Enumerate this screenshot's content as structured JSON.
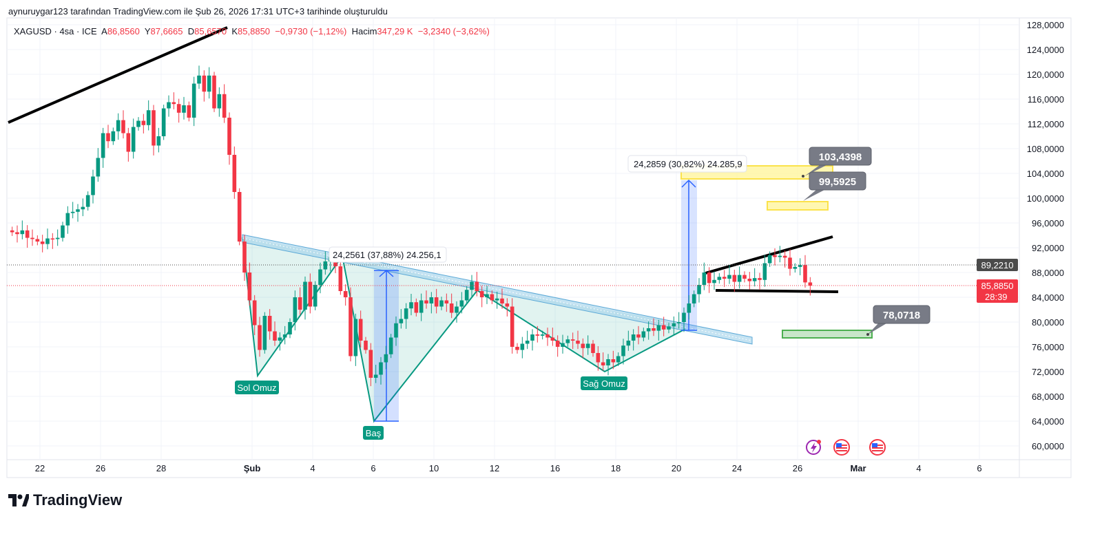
{
  "credit": "aynuruygar123 tarafından TradingView.com ile Şub 26, 2026 17:31 UTC+3 tarihinde oluşturuldu",
  "legend": {
    "symbol": "XAGUSD · 4sa · ICE",
    "open_label": "A",
    "open": "86,8560",
    "high_label": "Y",
    "high": "87,6665",
    "low_label": "D",
    "low": "85,6570",
    "close_label": "K",
    "close": "85,8850",
    "change": "−0,9730 (−1,12%)",
    "volume_label": "Hacim",
    "volume": "347,29 K",
    "volume_change": "−3,2340 (−3,62%)"
  },
  "logo": "TradingView",
  "colors": {
    "up": "#089981",
    "down": "#f23645",
    "accent": "#2962ff"
  },
  "chart_data": {
    "type": "candlestick",
    "symbol": "XAGUSD",
    "interval": "4h",
    "ylim": [
      58,
      130
    ],
    "y_ticks": [
      "128,0000",
      "124,0000",
      "120,0000",
      "116,0000",
      "112,0000",
      "108,0000",
      "104,0000",
      "100,0000",
      "96,0000",
      "92,0000",
      "88,0000",
      "84,0000",
      "80,0000",
      "76,0000",
      "72,0000",
      "68,0000",
      "64,0000",
      "60,0000"
    ],
    "y_tick_values": [
      128,
      124,
      120,
      116,
      112,
      108,
      104,
      100,
      96,
      92,
      88,
      84,
      80,
      76,
      72,
      68,
      64,
      60
    ],
    "x_ticks": [
      {
        "label": "22",
        "day": 1
      },
      {
        "label": "26",
        "day": 3
      },
      {
        "label": "28",
        "day": 5
      },
      {
        "label": "Şub",
        "day": 8
      },
      {
        "label": "4",
        "day": 10
      },
      {
        "label": "6",
        "day": 12
      },
      {
        "label": "10",
        "day": 14
      },
      {
        "label": "12",
        "day": 16
      },
      {
        "label": "16",
        "day": 18
      },
      {
        "label": "18",
        "day": 20
      },
      {
        "label": "20",
        "day": 22
      },
      {
        "label": "24",
        "day": 24
      },
      {
        "label": "26",
        "day": 26
      },
      {
        "label": "Mar",
        "day": 28
      },
      {
        "label": "4",
        "day": 30
      },
      {
        "label": "6",
        "day": 32
      }
    ],
    "candles_per_day": 6,
    "first_open": 94.8,
    "closes": [
      94.5,
      94.2,
      94.8,
      93.6,
      93.4,
      93.0,
      92.6,
      93.5,
      93.4,
      93.6,
      95.6,
      97.6,
      97.8,
      98.2,
      98.6,
      100.5,
      103.5,
      106.5,
      110.5,
      109.2,
      110.8,
      112.6,
      110.5,
      107.5,
      111.5,
      112.5,
      111.8,
      114.2,
      108.5,
      110.0,
      114.5,
      115.5,
      115.2,
      113.8,
      115.0,
      113.0,
      118.5,
      119.8,
      117.2,
      119.8,
      114.5,
      116.8,
      113.0,
      107.0,
      101.0,
      93.0,
      88.0,
      83.5,
      79.5,
      75.5,
      81.0,
      78.5,
      77.0,
      77.5,
      78.0,
      80.0,
      84.0,
      82.0,
      86.5,
      82.5,
      86.0,
      88.5,
      89.8,
      90.5,
      89.0,
      85.0,
      84.0,
      74.5,
      80.5,
      77.0,
      75.5,
      71.0,
      71.5,
      73.5,
      74.8,
      77.5,
      79.8,
      80.5,
      82.2,
      83.2,
      81.5,
      83.5,
      83.0,
      84.0,
      82.5,
      83.5,
      83.0,
      81.5,
      82.5,
      83.5,
      85.2,
      86.5,
      85.0,
      84.0,
      84.5,
      83.5,
      83.8,
      83.0,
      82.5,
      76.0,
      75.5,
      76.5,
      77.0,
      78.0,
      77.8,
      78.0,
      77.5,
      77.0,
      76.0,
      76.6,
      77.2,
      77.0,
      76.5,
      75.8,
      76.5,
      75.0,
      73.5,
      73.0,
      74.0,
      73.5,
      74.5,
      76.2,
      77.0,
      78.0,
      77.5,
      78.5,
      79.0,
      78.6,
      79.5,
      78.8,
      79.3,
      79.8,
      80.0,
      81.5,
      83.0,
      84.5,
      86.0,
      88.0,
      86.3,
      86.8,
      87.3,
      87.0,
      87.6,
      86.5,
      87.6,
      87.0,
      86.6,
      87.1,
      86.8,
      89.5,
      90.8,
      90.5,
      90.7,
      90.4,
      88.6,
      88.9,
      89.2,
      86.4,
      85.885
    ],
    "price_lines": [
      {
        "label": "89,2210",
        "value": 89.221,
        "color": "#4a4a4a"
      },
      {
        "label": "85,8850",
        "value": 85.885,
        "color": "#f23645",
        "countdown": "28:39"
      }
    ],
    "annotations": {
      "left_shoulder": "Sol Omuz",
      "head": "Baş",
      "right_shoulder": "Sağ Omuz",
      "measure1": "24,2561 (37,88%) 24.256,1",
      "measure2": "24,2859 (30,82%) 24.285,9",
      "target1": "103,4398",
      "target2": "99,5925",
      "support": "78,0718"
    }
  }
}
